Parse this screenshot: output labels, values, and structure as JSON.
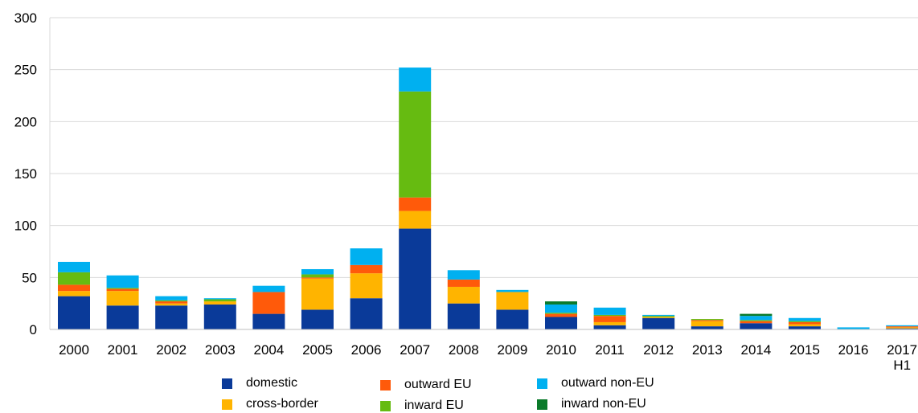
{
  "chart_data": {
    "type": "bar",
    "stacked": true,
    "title": "",
    "xlabel": "",
    "ylabel": "",
    "ylim": [
      0,
      300
    ],
    "yticks": [
      0,
      50,
      100,
      150,
      200,
      250,
      300
    ],
    "grid": true,
    "legend_position": "bottom",
    "categories": [
      "2000",
      "2001",
      "2002",
      "2003",
      "2004",
      "2005",
      "2006",
      "2007",
      "2008",
      "2009",
      "2010",
      "2011",
      "2012",
      "2013",
      "2014",
      "2015",
      "2016",
      "2017\nH1"
    ],
    "series": [
      {
        "name": "domestic",
        "color": "#0a3a99",
        "values": [
          32,
          23,
          23,
          24,
          15,
          19,
          30,
          97,
          25,
          19,
          12,
          4,
          11,
          3,
          6,
          3,
          0,
          1
        ]
      },
      {
        "name": "cross-border",
        "color": "#ffb400",
        "values": [
          5,
          14,
          2,
          3,
          0,
          30,
          24,
          17,
          16,
          17,
          0,
          3,
          1,
          5,
          0,
          2,
          0,
          1
        ]
      },
      {
        "name": "outward EU",
        "color": "#ff5a0a",
        "values": [
          6,
          2,
          2,
          0,
          21,
          1,
          8,
          13,
          7,
          0,
          3,
          6,
          0,
          1,
          2,
          2,
          0,
          1
        ]
      },
      {
        "name": "inward EU",
        "color": "#66bb11",
        "values": [
          12,
          1,
          1,
          2,
          0,
          3,
          0,
          102,
          0,
          0,
          1,
          1,
          1,
          1,
          1,
          1,
          0,
          0
        ]
      },
      {
        "name": "outward non-EU",
        "color": "#00b0f0",
        "values": [
          10,
          12,
          4,
          1,
          6,
          5,
          16,
          23,
          9,
          2,
          8,
          7,
          1,
          0,
          4,
          3,
          2,
          1
        ]
      },
      {
        "name": "inward non-EU",
        "color": "#0a7a2a",
        "values": [
          0,
          0,
          0,
          0,
          0,
          0,
          0,
          0,
          0,
          0,
          3,
          0,
          0,
          0,
          2,
          0,
          0,
          0
        ]
      }
    ]
  }
}
